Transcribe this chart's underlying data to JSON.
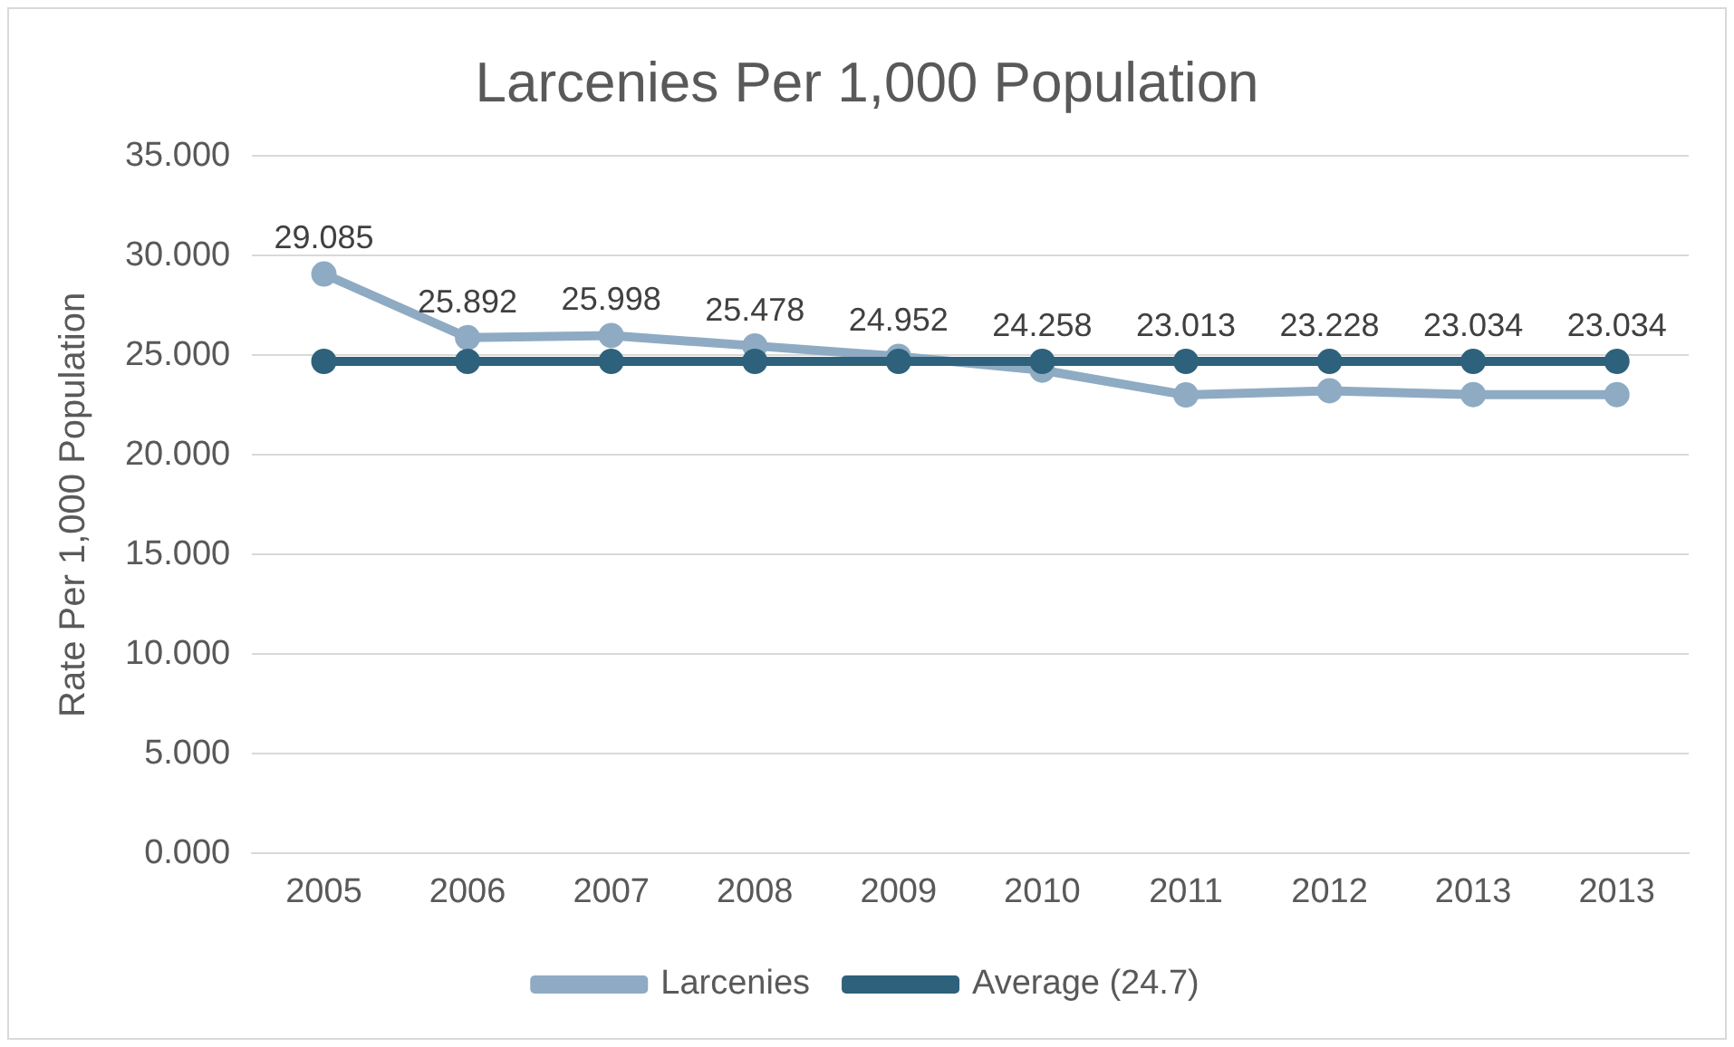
{
  "chart_data": {
    "type": "line",
    "title": "Larcenies Per 1,000 Population",
    "ylabel": "Rate Per 1,000 Population",
    "categories": [
      "2005",
      "2006",
      "2007",
      "2008",
      "2009",
      "2010",
      "2011",
      "2012",
      "2013",
      "2013"
    ],
    "series": [
      {
        "name": "Larcenies",
        "color": "#8eabc3",
        "values": [
          29.085,
          25.892,
          25.998,
          25.478,
          24.952,
          24.258,
          23.013,
          23.228,
          23.034,
          23.034
        ],
        "value_labels": [
          "29.085",
          "25.892",
          "25.998",
          "25.478",
          "24.952",
          "24.258",
          "23.013",
          "23.228",
          "23.034",
          "23.034"
        ]
      },
      {
        "name": "Average (24.7)",
        "color": "#2e617b",
        "values": [
          24.7,
          24.7,
          24.7,
          24.7,
          24.7,
          24.7,
          24.7,
          24.7,
          24.7,
          24.7
        ]
      }
    ],
    "ylim": [
      0,
      35
    ],
    "yticks": [
      {
        "value": 0,
        "label": "0.000"
      },
      {
        "value": 5,
        "label": "5.000"
      },
      {
        "value": 10,
        "label": "10.000"
      },
      {
        "value": 15,
        "label": "15.000"
      },
      {
        "value": 20,
        "label": "20.000"
      },
      {
        "value": 25,
        "label": "25.000"
      },
      {
        "value": 30,
        "label": "30.000"
      },
      {
        "value": 35,
        "label": "35.000"
      }
    ],
    "grid": "y",
    "legend": "bottom",
    "marker": "circle",
    "line_style": "solid"
  }
}
